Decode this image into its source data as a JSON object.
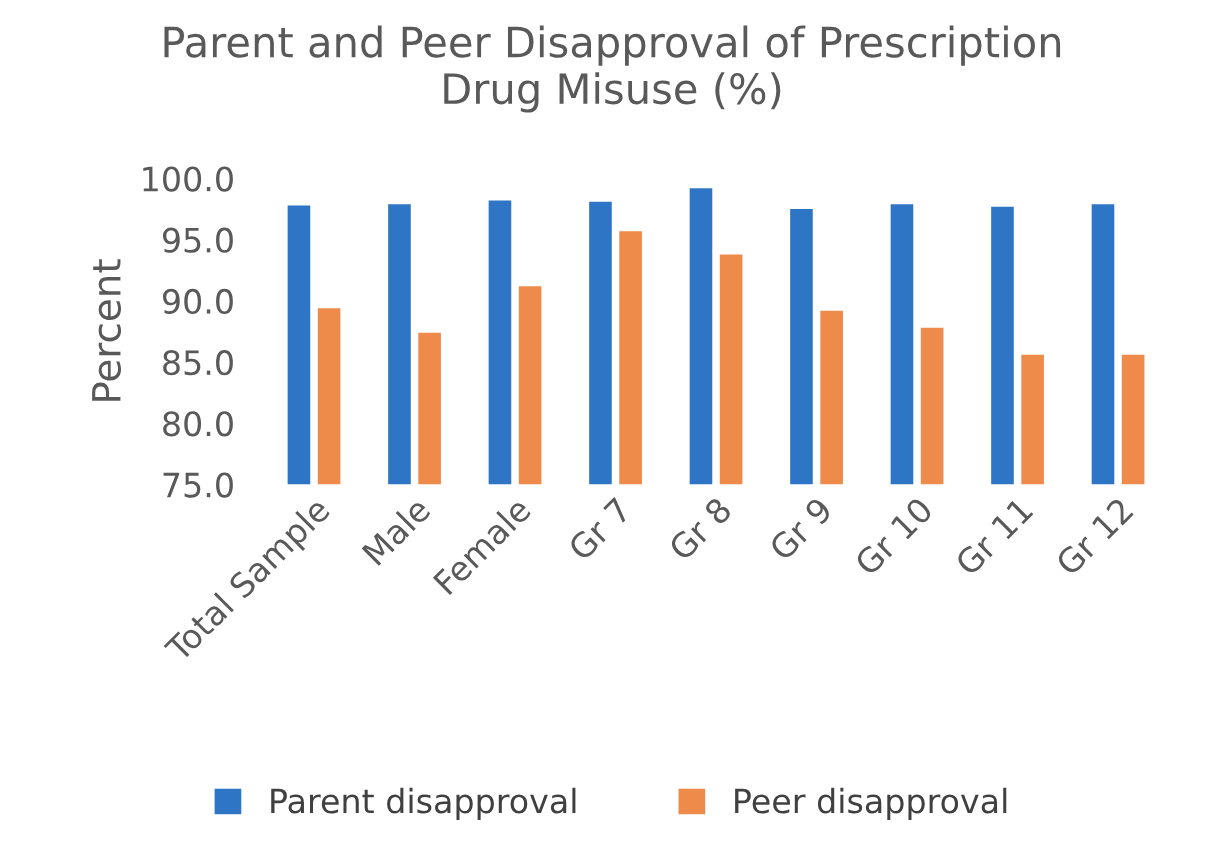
{
  "chart_data": {
    "type": "bar",
    "title": "Parent and Peer Disapproval of Prescription\nDrug Misuse (%)",
    "ylabel": "Percent",
    "categories": [
      "Total Sample",
      "Male",
      "Female",
      "Gr 7",
      "Gr 8",
      "Gr 9",
      "Gr 10",
      "Gr 11",
      "Gr 12"
    ],
    "series": [
      {
        "name": "Parent disapproval",
        "color": "#2e75c6",
        "values": [
          97.8,
          97.9,
          98.2,
          98.1,
          99.2,
          97.5,
          97.9,
          97.7,
          97.9
        ]
      },
      {
        "name": "Peer disapproval",
        "color": "#ee8a4a",
        "values": [
          89.4,
          87.4,
          91.2,
          95.7,
          93.8,
          89.2,
          87.8,
          85.6,
          85.6
        ]
      }
    ],
    "ylim": [
      75,
      100
    ],
    "yticks": [
      {
        "value": 75,
        "label": "75.0"
      },
      {
        "value": 80,
        "label": "80.0"
      },
      {
        "value": 85,
        "label": "85.0"
      },
      {
        "value": 90,
        "label": "90.0"
      },
      {
        "value": 95,
        "label": "95.0"
      },
      {
        "value": 100,
        "label": "100.0"
      }
    ],
    "legend": "bottom"
  }
}
